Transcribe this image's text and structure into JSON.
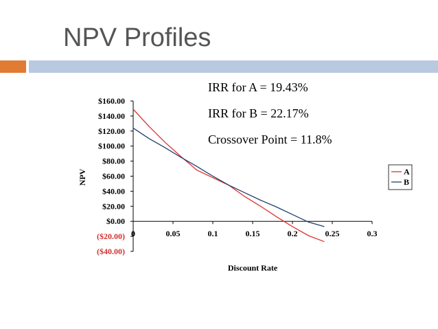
{
  "slide": {
    "title": "NPV Profiles",
    "annotations": [
      "IRR for A = 19.43%",
      "IRR for B = 22.17%",
      "Crossover Point = 11.8%"
    ],
    "colors": {
      "bar_orange": "#e17b34",
      "bar_blue": "#b9c9df"
    }
  },
  "chart_data": {
    "type": "line",
    "xlabel": "Discount Rate",
    "ylabel": "NPV",
    "xlim": [
      0,
      0.3
    ],
    "ylim": [
      -40,
      160
    ],
    "x_ticks": [
      0,
      0.05,
      0.1,
      0.15,
      0.2,
      0.25,
      0.3
    ],
    "x_tick_labels": [
      "0",
      "0.05",
      "0.1",
      "0.15",
      "0.2",
      "0.25",
      "0.3"
    ],
    "y_ticks": [
      160,
      140,
      120,
      100,
      80,
      60,
      40,
      20,
      0,
      -20,
      -40
    ],
    "y_tick_labels": [
      "$160.00",
      "$140.00",
      "$120.00",
      "$100.00",
      "$80.00",
      "$60.00",
      "$40.00",
      "$20.00",
      "$0.00",
      "($20.00)",
      "($40.00)"
    ],
    "negative_label_color": "#d32f2f",
    "grid": false,
    "legend_position": "right",
    "series": [
      {
        "name": "A",
        "color": "#e03030",
        "x": [
          0,
          0.02,
          0.04,
          0.06,
          0.08,
          0.1,
          0.12,
          0.14,
          0.16,
          0.18,
          0.2,
          0.22,
          0.24
        ],
        "y": [
          149,
          126,
          105,
          86,
          68,
          58,
          48,
          33,
          20,
          6,
          -7,
          -19,
          -27
        ]
      },
      {
        "name": "B",
        "color": "#1f3f68",
        "x": [
          0,
          0.02,
          0.04,
          0.06,
          0.08,
          0.1,
          0.12,
          0.14,
          0.16,
          0.18,
          0.2,
          0.22,
          0.24
        ],
        "y": [
          124,
          110,
          98,
          85,
          73,
          60,
          48,
          38,
          28,
          19,
          9,
          -1,
          -7
        ]
      }
    ]
  }
}
